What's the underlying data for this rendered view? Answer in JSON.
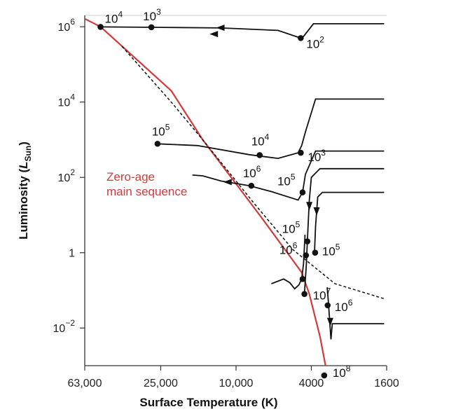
{
  "chart_data": {
    "type": "line",
    "title": "",
    "xlabel": "Surface Temperature (K)",
    "ylabel_main": "Luminosity (",
    "ylabel_sym": "L",
    "ylabel_sub": "Sun",
    "ylabel_end": ")",
    "x_scale": "log-reversed",
    "y_scale": "log",
    "xlim": [
      63000,
      1600
    ],
    "ylim": [
      0.001,
      2000000
    ],
    "x_ticks": [
      {
        "value": 63000,
        "label": "63,000"
      },
      {
        "value": 25000,
        "label": "25,000"
      },
      {
        "value": 10000,
        "label": "10,000"
      },
      {
        "value": 4000,
        "label": "4000"
      },
      {
        "value": 1600,
        "label": "1600"
      }
    ],
    "y_ticks": [
      {
        "value": 1000000,
        "base": "10",
        "exp": "6"
      },
      {
        "value": 10000,
        "base": "10",
        "exp": "4"
      },
      {
        "value": 100,
        "base": "10",
        "exp": "2"
      },
      {
        "value": 1,
        "base": "1",
        "exp": ""
      },
      {
        "value": 0.01,
        "base": "10",
        "exp": "−2"
      }
    ],
    "zams_label_line1": "Zero-age",
    "zams_label_line2": "main sequence",
    "zams_color": "#d23a3a",
    "line_color": "#111111",
    "zams": [
      [
        80000,
        3000000
      ],
      [
        52000,
        1000000
      ],
      [
        22000,
        20000
      ],
      [
        15000,
        1000
      ],
      [
        7500,
        10
      ],
      [
        4500,
        0.3
      ],
      [
        4100,
        0.08
      ],
      [
        3600,
        0.006
      ],
      [
        3250,
        0.0004
      ]
    ],
    "dashed_line": [
      [
        40000,
        300000
      ],
      [
        22000,
        10000
      ],
      [
        15000,
        1000
      ],
      [
        8000,
        20
      ],
      [
        5000,
        1.2
      ],
      [
        3000,
        0.15
      ],
      [
        1650,
        0.06
      ]
    ],
    "tracks": [
      {
        "path": [
          [
            1650,
            1200000
          ],
          [
            3900,
            1200000
          ],
          [
            4400,
            550000
          ],
          [
            4550,
            500000
          ],
          [
            6000,
            800000
          ],
          [
            12000,
            930000
          ],
          [
            24000,
            960000
          ],
          [
            52000,
            990000
          ]
        ],
        "arrow": {
          "x": 12000,
          "y": 940000,
          "dir": "left"
        },
        "points": [
          {
            "x": 52000,
            "y": 990000,
            "base": "10",
            "exp": "4",
            "dx": 6,
            "dy": -6
          },
          {
            "x": 28000,
            "y": 970000,
            "base": "10",
            "exp": "3",
            "dx": -12,
            "dy": -10
          },
          {
            "x": 4550,
            "y": 500000,
            "base": "10",
            "exp": "2",
            "dx": 8,
            "dy": 14
          }
        ]
      },
      {
        "path": [
          [
            1650,
            12000
          ],
          [
            3800,
            12000
          ],
          [
            4300,
            1600
          ],
          [
            4500,
            700
          ],
          [
            4700,
            450
          ],
          [
            6000,
            320
          ],
          [
            8500,
            400
          ],
          [
            16000,
            700
          ],
          [
            26000,
            780
          ]
        ],
        "arrow": {
          "x": 13000,
          "y": 640000,
          "dir": "left"
        },
        "points": [
          {
            "x": 26000,
            "y": 780,
            "base": "10",
            "exp": "5",
            "dx": -8,
            "dy": -12
          },
          {
            "x": 7500,
            "y": 390,
            "base": "10",
            "exp": "4",
            "dx": -12,
            "dy": -14
          },
          {
            "x": 4550,
            "y": 450,
            "base": "10",
            "exp": "3",
            "dx": 10,
            "dy": 12
          }
        ]
      },
      {
        "path": [
          [
            1650,
            500
          ],
          [
            3800,
            500
          ],
          [
            4300,
            120
          ],
          [
            4450,
            40
          ],
          [
            4700,
            25
          ],
          [
            6500,
            42
          ],
          [
            8500,
            60
          ],
          [
            12000,
            80
          ],
          [
            15000,
            110
          ],
          [
            17000,
            115
          ]
        ],
        "arrow": {
          "x": 11000,
          "y": 75,
          "dir": "left"
        },
        "points": [
          {
            "x": 8300,
            "y": 60,
            "base": "10",
            "exp": "6",
            "dx": -12,
            "dy": -12
          },
          {
            "x": 4450,
            "y": 40,
            "base": "10",
            "exp": "5",
            "dx": -36,
            "dy": -10
          }
        ]
      },
      {
        "path": [
          [
            1650,
            170
          ],
          [
            3600,
            170
          ],
          [
            4000,
            100
          ],
          [
            4100,
            25
          ],
          [
            4200,
            2
          ],
          [
            4250,
            0.5
          ],
          [
            4350,
            0.08
          ]
        ],
        "arrow": {
          "x": 4100,
          "y": 18,
          "dir": "down"
        },
        "points": [
          {
            "x": 4200,
            "y": 2,
            "base": "10",
            "exp": "5",
            "dx": -36,
            "dy": -12
          },
          {
            "x": 4270,
            "y": 0.85,
            "base": "10",
            "exp": "6",
            "dx": -38,
            "dy": -2
          },
          {
            "x": 4350,
            "y": 0.08,
            "base": "10",
            "exp": "7",
            "dx": 12,
            "dy": 8
          }
        ]
      },
      {
        "path": [
          [
            1650,
            40
          ],
          [
            3500,
            40
          ],
          [
            3700,
            30
          ],
          [
            3800,
            5
          ],
          [
            3850,
            1
          ]
        ],
        "arrow": {
          "x": 3750,
          "y": 13,
          "dir": "down"
        },
        "points": [
          {
            "x": 3820,
            "y": 1,
            "base": "10",
            "exp": "5",
            "dx": 10,
            "dy": 4
          }
        ]
      },
      {
        "path": [
          [
            6500,
            0.15
          ],
          [
            5600,
            0.2
          ],
          [
            5200,
            0.16
          ],
          [
            4900,
            0.11
          ],
          [
            4650,
            0.14
          ],
          [
            4500,
            0.2
          ],
          [
            4400,
            0.5
          ],
          [
            4320,
            3
          ]
        ],
        "arrow": null,
        "points": [
          {
            "x": 4450,
            "y": 0.2,
            "base": "",
            "exp": "",
            "dx": 0,
            "dy": 0
          }
        ]
      },
      {
        "path": [
          [
            1650,
            0.013
          ],
          [
            3100,
            0.013
          ],
          [
            3150,
            0.005
          ],
          [
            3250,
            0.05
          ],
          [
            3300,
            0.12
          ]
        ],
        "arrow": {
          "x": 3180,
          "y": 0.015,
          "dir": "down"
        },
        "points": [
          {
            "x": 3280,
            "y": 0.04,
            "base": "10",
            "exp": "6",
            "dx": 10,
            "dy": 8
          },
          {
            "x": 3420,
            "y": 0.00055,
            "base": "10",
            "exp": "8",
            "dx": 12,
            "dy": 2
          }
        ]
      }
    ]
  }
}
